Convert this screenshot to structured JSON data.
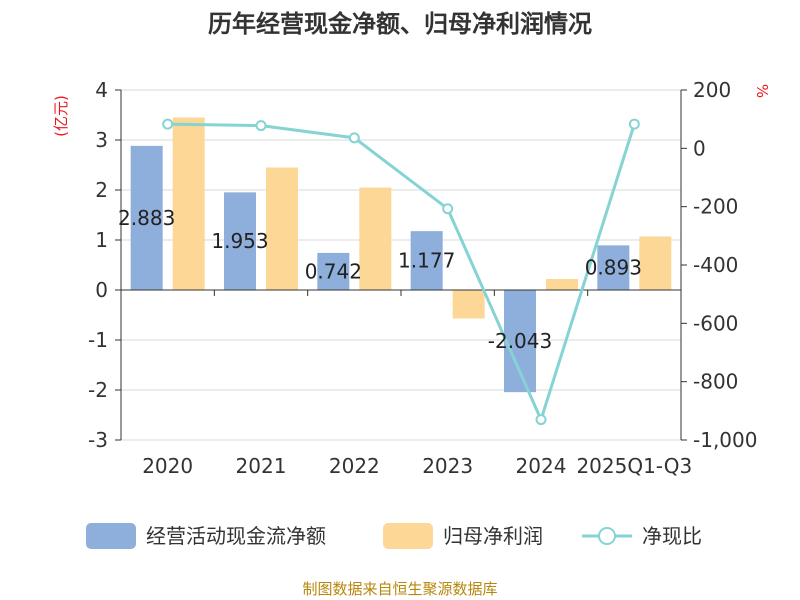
{
  "chart_data": {
    "type": "bar",
    "title": "历年经营现金净额、归母净利润情况",
    "categories": [
      "2020",
      "2021",
      "2022",
      "2023",
      "2024",
      "2025Q1-Q3"
    ],
    "left_axis": {
      "unit": "(亿元)",
      "ylim": [
        -3,
        4
      ],
      "ticks": [
        "4",
        "3",
        "2",
        "1",
        "0",
        "-1",
        "-2",
        "-3"
      ]
    },
    "right_axis": {
      "unit": "%",
      "ylim": [
        -1000,
        200
      ],
      "ticks": [
        "200",
        "0",
        "-200",
        "-400",
        "-600",
        "-800",
        "-1,000"
      ]
    },
    "series": [
      {
        "name": "经营活动现金流净额",
        "type": "bar",
        "axis": "left",
        "color": "#8eaedb",
        "values": [
          2.883,
          1.953,
          0.742,
          1.177,
          -2.043,
          0.893
        ],
        "labels": [
          "2.883",
          "1.953",
          "0.742",
          "1.177",
          "-2.043",
          "0.893"
        ]
      },
      {
        "name": "归母净利润",
        "type": "bar",
        "axis": "left",
        "color": "#fdd796",
        "values": [
          3.45,
          2.45,
          2.05,
          -0.57,
          0.22,
          1.07
        ]
      },
      {
        "name": "净现比",
        "type": "line",
        "axis": "right",
        "color": "#86d3d4",
        "values": [
          83,
          78,
          36,
          -207,
          -930,
          83
        ]
      }
    ],
    "grid": true,
    "legend_position": "bottom"
  },
  "source_note": "制图数据来自恒生聚源数据库"
}
